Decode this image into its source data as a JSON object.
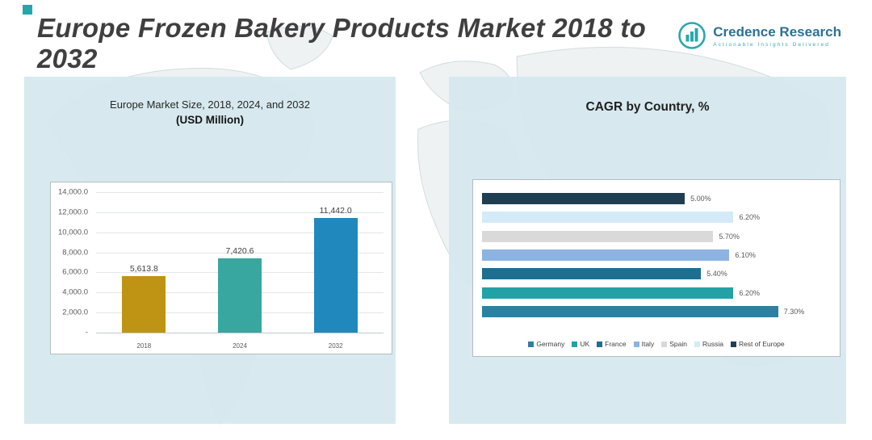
{
  "page": {
    "title": "Europe Frozen Bakery Products Market 2018 to 2032",
    "logo": {
      "name": "Credence Research",
      "tagline": "Actionable Insights Delivered",
      "accent_color": "#23a7ad"
    }
  },
  "left_panel": {
    "title": "Europe Market Size, 2018, 2024, and 2032",
    "subtitle": "(USD Million)"
  },
  "right_panel": {
    "title": "CAGR by Country, %"
  },
  "chart_data": [
    {
      "type": "bar",
      "title": "Europe Market Size, 2018, 2024, and 2032 (USD Million)",
      "categories": [
        "2018",
        "2024",
        "2032"
      ],
      "values": [
        5613.8,
        7420.6,
        11442.0
      ],
      "value_labels": [
        "5,613.8",
        "7,420.6",
        "11,442.0"
      ],
      "bar_colors": [
        "#bf9314",
        "#38a7a0",
        "#2088bc"
      ],
      "ylim": [
        0,
        14000
      ],
      "ytick_labels": [
        "14,000.0",
        "12,000.0",
        "10,000.0",
        "8,000.0",
        "6,000.0",
        "4,000.0",
        "2,000.0",
        "-"
      ],
      "grid": true
    },
    {
      "type": "bar",
      "orientation": "horizontal",
      "title": "CAGR by Country, %",
      "xlim": [
        0,
        8.6
      ],
      "bars_top_to_bottom": [
        {
          "name": "Rest of Europe",
          "value": 5.0,
          "label": "5.00%",
          "color": "#203e52"
        },
        {
          "name": "Russia",
          "value": 6.2,
          "label": "6.20%",
          "color": "#d4ebf7"
        },
        {
          "name": "Spain",
          "value": 5.7,
          "label": "5.70%",
          "color": "#d9d9d9"
        },
        {
          "name": "Italy",
          "value": 6.1,
          "label": "6.10%",
          "color": "#8db3e2"
        },
        {
          "name": "France",
          "value": 5.4,
          "label": "5.40%",
          "color": "#1d6f90"
        },
        {
          "name": "UK",
          "value": 6.2,
          "label": "6.20%",
          "color": "#22a2a6"
        },
        {
          "name": "Germany",
          "value": 7.3,
          "label": "7.30%",
          "color": "#2e80a2"
        }
      ],
      "legend": [
        "Germany",
        "UK",
        "France",
        "Italy",
        "Spain",
        "Russia",
        "Rest of Europe"
      ],
      "legend_position": "bottom"
    }
  ]
}
